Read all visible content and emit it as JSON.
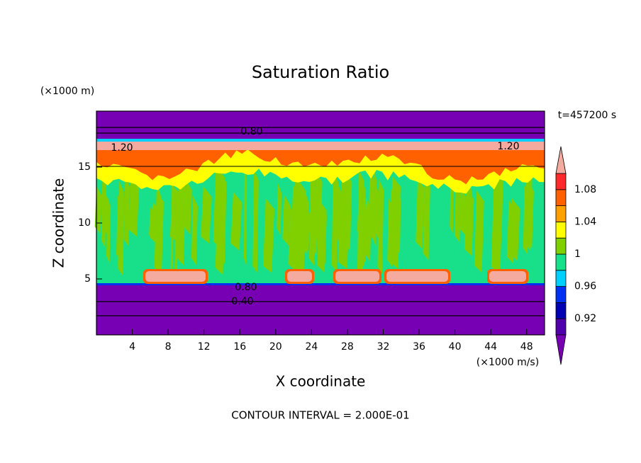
{
  "chart_data": {
    "type": "contour",
    "title": "Saturation Ratio",
    "y_unit_label": "(×1000 m)",
    "x_unit_label": "(×1000 m/s)",
    "time_label": "t=457200 s",
    "xlabel": "X coordinate",
    "ylabel": "Z coordinate",
    "footer": "CONTOUR INTERVAL = 2.000E-01",
    "contour_labels": [
      "0.80",
      "1.20",
      "1.20",
      "0.80",
      "0.40"
    ],
    "xlim": [
      0,
      50
    ],
    "xticks": [
      4,
      8,
      12,
      16,
      20,
      24,
      28,
      32,
      36,
      40,
      44,
      48
    ],
    "ylim": [
      0,
      20
    ],
    "yticks": [
      5,
      10,
      15
    ],
    "colorbar": {
      "clim": [
        0.9,
        1.1
      ],
      "ticks": [
        0.92,
        0.96,
        1,
        1.04,
        1.08
      ],
      "levels": [
        0.9,
        0.92,
        0.94,
        0.96,
        0.98,
        1,
        1.02,
        1.04,
        1.06,
        1.08,
        1.1
      ],
      "colors": [
        "#7800b4",
        "#5000aa",
        "#0000b0",
        "#0030f0",
        "#00d0ff",
        "#18e08a",
        "#80d000",
        "#ffff00",
        "#ffa000",
        "#ff6000",
        "#ff2a2a",
        "#f5aaa0"
      ]
    }
  }
}
